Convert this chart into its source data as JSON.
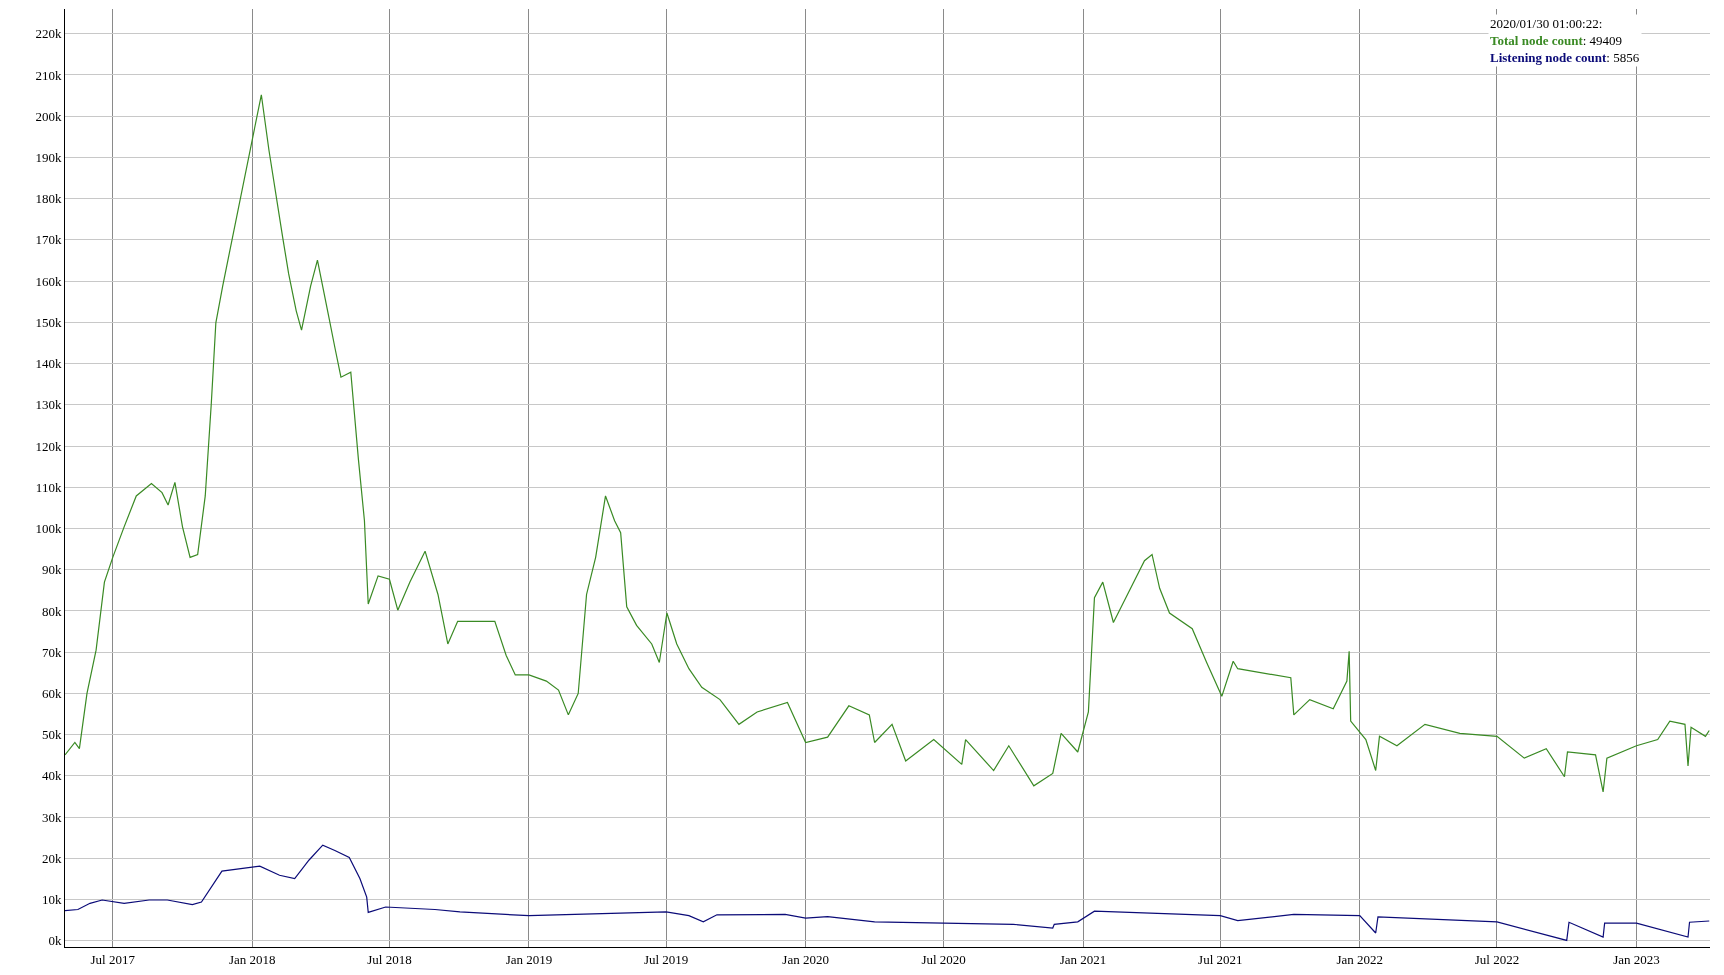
{
  "chart_data": {
    "type": "line",
    "series": [
      {
        "name": "Total node count",
        "color": "#3a8a24",
        "x": [
          "2017-04-29",
          "2017-05-12",
          "2017-05-18",
          "2017-05-28",
          "2017-06-09",
          "2017-06-20",
          "2017-07-01",
          "2017-07-16",
          "2017-08-01",
          "2017-08-21",
          "2017-09-04",
          "2017-09-12",
          "2017-09-21",
          "2017-10-01",
          "2017-10-11",
          "2017-10-21",
          "2017-10-31",
          "2017-11-08",
          "2017-11-14",
          "2017-11-23",
          "2018-01-13",
          "2018-01-23",
          "2018-02-10",
          "2018-02-18",
          "2018-02-28",
          "2018-03-07",
          "2018-03-19",
          "2018-03-28",
          "2018-04-12",
          "2018-04-20",
          "2018-04-28",
          "2018-05-11",
          "2018-05-21",
          "2018-05-29",
          "2018-06-03",
          "2018-06-16",
          "2018-07-01",
          "2018-07-12",
          "2018-07-28",
          "2018-08-17",
          "2018-09-03",
          "2018-09-16",
          "2018-09-29",
          "2018-11-17",
          "2018-12-02",
          "2018-12-14",
          "2019-01-01",
          "2019-01-24",
          "2019-02-09",
          "2019-02-22",
          "2019-03-07",
          "2019-03-18",
          "2019-03-30",
          "2019-04-12",
          "2019-04-24",
          "2019-05-02",
          "2019-05-10",
          "2019-05-23",
          "2019-06-12",
          "2019-06-22",
          "2019-07-02",
          "2019-07-15",
          "2019-07-31",
          "2019-08-17",
          "2019-09-10",
          "2019-10-05",
          "2019-10-29",
          "2019-12-08",
          "2020-01-01",
          "2020-01-30",
          "2020-02-27",
          "2020-03-25",
          "2020-04-01",
          "2020-04-24",
          "2020-05-12",
          "2020-06-18",
          "2020-07-25",
          "2020-07-30",
          "2020-09-05",
          "2020-09-25",
          "2020-10-28",
          "2020-11-22",
          "2020-12-03",
          "2020-12-25",
          "2021-01-08",
          "2021-01-16",
          "2021-01-27",
          "2021-02-10",
          "2021-03-23",
          "2021-04-02",
          "2021-04-12",
          "2021-04-25",
          "2021-05-25",
          "2021-06-13",
          "2021-07-03",
          "2021-07-18",
          "2021-07-24",
          "2021-10-02",
          "2021-10-06",
          "2021-10-27",
          "2021-11-27",
          "2021-12-15",
          "2021-12-18",
          "2021-12-20",
          "2022-01-09",
          "2022-01-22",
          "2022-01-27",
          "2022-02-19",
          "2022-03-28",
          "2022-05-13",
          "2022-07-01",
          "2022-08-06",
          "2022-09-04",
          "2022-09-28",
          "2022-10-02",
          "2022-11-08",
          "2022-11-18",
          "2022-11-23",
          "2023-01-01",
          "2023-01-29",
          "2023-02-14",
          "2023-03-06",
          "2023-03-10",
          "2023-03-14",
          "2023-04-02",
          "2023-04-07"
        ],
        "values": [
          45100,
          48100,
          46600,
          60000,
          70500,
          87000,
          93000,
          100400,
          107900,
          110900,
          108700,
          105700,
          111200,
          100400,
          93000,
          93700,
          107900,
          130400,
          149900,
          158800,
          205200,
          191800,
          170800,
          161800,
          152800,
          148100,
          158800,
          165100,
          151300,
          143900,
          136700,
          137900,
          116900,
          101900,
          81700,
          88500,
          87700,
          80200,
          87000,
          94500,
          84000,
          72000,
          77500,
          77500,
          69200,
          64500,
          64500,
          63000,
          60800,
          54800,
          60000,
          84000,
          93000,
          107900,
          101900,
          99000,
          81000,
          76500,
          72000,
          67500,
          79500,
          72000,
          66000,
          61500,
          58500,
          52500,
          55500,
          57800,
          48100,
          49409,
          57000,
          54800,
          48100,
          52500,
          43600,
          48800,
          42800,
          48800,
          41300,
          47300,
          37600,
          40600,
          50300,
          45800,
          55500,
          83200,
          87000,
          77200,
          92200,
          93700,
          85500,
          79500,
          75700,
          67500,
          59300,
          67800,
          66000,
          63800,
          54800,
          58500,
          56300,
          63000,
          70200,
          53300,
          48800,
          41300,
          49600,
          47300,
          52500,
          50300,
          49600,
          44300,
          46600,
          39800,
          45800,
          45100,
          36100,
          44300,
          47300,
          48800,
          53300,
          52500,
          42400,
          51800,
          49600,
          51000
        ]
      },
      {
        "name": "Listening node count",
        "color": "#0b0b78",
        "x": [
          "2017-04-29",
          "2017-05-16",
          "2017-06-01",
          "2017-06-17",
          "2017-07-16",
          "2017-08-18",
          "2017-09-11",
          "2017-10-14",
          "2017-10-26",
          "2017-11-22",
          "2018-01-11",
          "2018-02-06",
          "2018-02-26",
          "2018-03-17",
          "2018-04-04",
          "2018-04-20",
          "2018-05-09",
          "2018-05-23",
          "2018-06-01",
          "2018-06-03",
          "2018-06-26",
          "2018-08-30",
          "2018-10-02",
          "2019-01-01",
          "2019-07-01",
          "2019-07-31",
          "2019-08-19",
          "2019-09-06",
          "2019-12-05",
          "2020-01-01",
          "2020-01-30",
          "2020-04-01",
          "2020-07-01",
          "2020-10-01",
          "2020-11-22",
          "2020-11-24",
          "2020-12-25",
          "2021-01-16",
          "2021-07-01",
          "2021-07-24",
          "2021-10-06",
          "2022-01-01",
          "2022-01-22",
          "2022-01-25",
          "2022-07-01",
          "2022-10-01",
          "2022-10-04",
          "2022-11-18",
          "2022-11-20",
          "2023-01-01",
          "2023-03-10",
          "2023-03-12",
          "2023-04-07"
        ],
        "values": [
          7300,
          7600,
          9100,
          9900,
          9100,
          9900,
          9900,
          8800,
          9400,
          16900,
          18100,
          15900,
          15100,
          19600,
          23200,
          21900,
          20200,
          15100,
          10600,
          6900,
          8200,
          7600,
          7000,
          6100,
          7000,
          6100,
          4600,
          6300,
          6400,
          5500,
          5856,
          4600,
          4300,
          4000,
          3100,
          4000,
          4600,
          7200,
          6100,
          4900,
          6400,
          6100,
          1900,
          5800,
          4600,
          100,
          4500,
          900,
          4300,
          4300,
          900,
          4500,
          4800
        ]
      }
    ],
    "xlim": [
      "2017-04-29",
      "2023-04-08"
    ],
    "xticks": [
      {
        "value": "2017-07-01",
        "label": "Jul 2017"
      },
      {
        "value": "2018-01-01",
        "label": "Jan 2018"
      },
      {
        "value": "2018-07-01",
        "label": "Jul 2018"
      },
      {
        "value": "2019-01-01",
        "label": "Jan 2019"
      },
      {
        "value": "2019-07-01",
        "label": "Jul 2019"
      },
      {
        "value": "2020-01-01",
        "label": "Jan 2020"
      },
      {
        "value": "2020-07-01",
        "label": "Jul 2020"
      },
      {
        "value": "2021-01-01",
        "label": "Jan 2021"
      },
      {
        "value": "2021-07-01",
        "label": "Jul 2021"
      },
      {
        "value": "2022-01-01",
        "label": "Jan 2022"
      },
      {
        "value": "2022-07-01",
        "label": "Jul 2022"
      },
      {
        "value": "2023-01-01",
        "label": "Jan 2023"
      }
    ],
    "ylim": [
      -1500,
      226000
    ],
    "yticks": [
      {
        "value": 0,
        "label": "0k"
      },
      {
        "value": 10000,
        "label": "10k"
      },
      {
        "value": 20000,
        "label": "20k"
      },
      {
        "value": 30000,
        "label": "30k"
      },
      {
        "value": 40000,
        "label": "40k"
      },
      {
        "value": 50000,
        "label": "50k"
      },
      {
        "value": 60000,
        "label": "60k"
      },
      {
        "value": 70000,
        "label": "70k"
      },
      {
        "value": 80000,
        "label": "80k"
      },
      {
        "value": 90000,
        "label": "90k"
      },
      {
        "value": 100000,
        "label": "100k"
      },
      {
        "value": 110000,
        "label": "110k"
      },
      {
        "value": 120000,
        "label": "120k"
      },
      {
        "value": 130000,
        "label": "130k"
      },
      {
        "value": 140000,
        "label": "140k"
      },
      {
        "value": 150000,
        "label": "150k"
      },
      {
        "value": 160000,
        "label": "160k"
      },
      {
        "value": 170000,
        "label": "170k"
      },
      {
        "value": 180000,
        "label": "180k"
      },
      {
        "value": 190000,
        "label": "190k"
      },
      {
        "value": 200000,
        "label": "200k"
      },
      {
        "value": 210000,
        "label": "210k"
      },
      {
        "value": 220000,
        "label": "220k"
      }
    ],
    "annotations": [
      "2020/01/30 01:00:22:",
      ": 49409",
      ": 5856"
    ],
    "grid": true,
    "legend": "top right",
    "marker": "none",
    "line_style": "solid"
  }
}
